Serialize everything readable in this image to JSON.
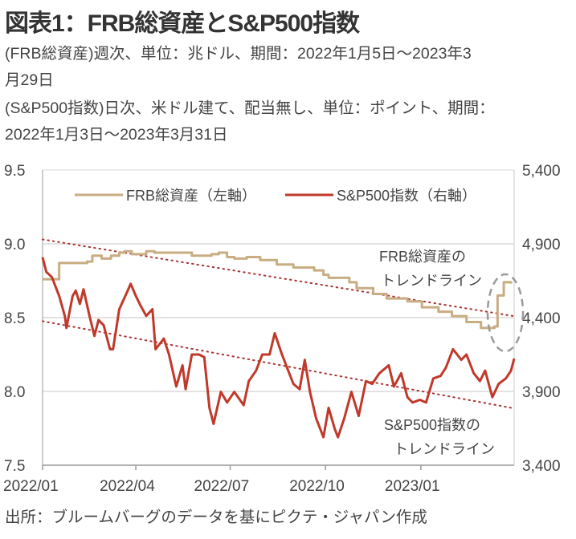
{
  "title": "図表1：FRB総資産とS&P500指数",
  "notes": [
    "(FRB総資産)週次、単位：兆ドル、期間：2022年1月5日～2023年3",
    "月29日",
    "(S&P500指数)日次、米ドル建て、配当無し、単位：ポイント、期間：",
    "2022年1月3日～2023年3月31日"
  ],
  "source": "出所：ブルームバーグのデータを基にピクテ・ジャパン作成",
  "chart_data": {
    "type": "line",
    "x_unit": "days since 2022-01-01",
    "xlim": [
      0,
      455
    ],
    "x_ticks": [
      {
        "day": 0,
        "label": "2022/01"
      },
      {
        "day": 90,
        "label": "2022/04"
      },
      {
        "day": 181,
        "label": "2022/07"
      },
      {
        "day": 273,
        "label": "2022/10"
      },
      {
        "day": 365,
        "label": "2023/01"
      }
    ],
    "y_left": {
      "lim": [
        7.5,
        9.5
      ],
      "ticks": [
        "9.5",
        "9.0",
        "8.5",
        "8.0",
        "7.5"
      ],
      "tick_values": [
        9.5,
        9.0,
        8.5,
        8.0,
        7.5
      ]
    },
    "y_right": {
      "lim": [
        3400,
        5400
      ],
      "ticks": [
        "5,400",
        "4,900",
        "4,400",
        "3,900",
        "3,400"
      ],
      "tick_values": [
        5400,
        4900,
        4400,
        3900,
        3400
      ]
    },
    "grid": true,
    "legend": {
      "placement": "top",
      "entries": [
        "FRB総資産（左軸）",
        "S&P500指数（右軸）"
      ]
    },
    "colors": {
      "frb": "#c8ad82",
      "sp": "#c0392b",
      "grid": "#d9d9d9",
      "trend": "#a33",
      "ellipse": "#9a9a9a"
    },
    "series": [
      {
        "name": "FRB総資産（左軸）",
        "axis": "left",
        "step": true,
        "points": [
          [
            0,
            8.76
          ],
          [
            16,
            8.87
          ],
          [
            43,
            8.88
          ],
          [
            48,
            8.92
          ],
          [
            57,
            8.9
          ],
          [
            66,
            8.92
          ],
          [
            74,
            8.94
          ],
          [
            79,
            8.95
          ],
          [
            86,
            8.93
          ],
          [
            100,
            8.95
          ],
          [
            108,
            8.94
          ],
          [
            135,
            8.94
          ],
          [
            144,
            8.92
          ],
          [
            163,
            8.93
          ],
          [
            170,
            8.94
          ],
          [
            178,
            8.91
          ],
          [
            185,
            8.9
          ],
          [
            197,
            8.91
          ],
          [
            210,
            8.89
          ],
          [
            226,
            8.86
          ],
          [
            242,
            8.84
          ],
          [
            262,
            8.82
          ],
          [
            271,
            8.79
          ],
          [
            276,
            8.77
          ],
          [
            296,
            8.74
          ],
          [
            303,
            8.7
          ],
          [
            319,
            8.66
          ],
          [
            332,
            8.63
          ],
          [
            352,
            8.61
          ],
          [
            366,
            8.57
          ],
          [
            382,
            8.54
          ],
          [
            395,
            8.51
          ],
          [
            409,
            8.47
          ],
          [
            423,
            8.43
          ],
          [
            436,
            8.44
          ],
          [
            439,
            8.65
          ],
          [
            445,
            8.74
          ],
          [
            452,
            8.73
          ]
        ]
      },
      {
        "name": "S&P500指数（右軸）",
        "axis": "right",
        "step": false,
        "points": [
          [
            0,
            4809
          ],
          [
            3.6,
            4710
          ],
          [
            9,
            4674
          ],
          [
            16,
            4547
          ],
          [
            21.5,
            4410
          ],
          [
            23,
            4330
          ],
          [
            29,
            4547
          ],
          [
            32,
            4583
          ],
          [
            36,
            4493
          ],
          [
            39.5,
            4592
          ],
          [
            45,
            4420
          ],
          [
            50,
            4276
          ],
          [
            54,
            4384
          ],
          [
            59,
            4348
          ],
          [
            65,
            4186
          ],
          [
            68,
            4186
          ],
          [
            74,
            4457
          ],
          [
            81,
            4565
          ],
          [
            85,
            4629
          ],
          [
            90,
            4547
          ],
          [
            95,
            4475
          ],
          [
            100,
            4412
          ],
          [
            106,
            4457
          ],
          [
            109,
            4186
          ],
          [
            117,
            4258
          ],
          [
            122,
            4150
          ],
          [
            129,
            3933
          ],
          [
            135,
            4077
          ],
          [
            138,
            3915
          ],
          [
            144,
            4150
          ],
          [
            151,
            4150
          ],
          [
            156,
            4132
          ],
          [
            161,
            3789
          ],
          [
            165,
            3680
          ],
          [
            172,
            3897
          ],
          [
            178,
            3825
          ],
          [
            185,
            3897
          ],
          [
            194,
            3807
          ],
          [
            199,
            3970
          ],
          [
            206,
            4041
          ],
          [
            212,
            4150
          ],
          [
            219,
            4150
          ],
          [
            224,
            4294
          ],
          [
            231,
            4150
          ],
          [
            237,
            4041
          ],
          [
            242,
            3951
          ],
          [
            248,
            3915
          ],
          [
            253,
            4114
          ],
          [
            258,
            3897
          ],
          [
            264,
            3716
          ],
          [
            271,
            3590
          ],
          [
            276,
            3789
          ],
          [
            282,
            3644
          ],
          [
            285,
            3590
          ],
          [
            291,
            3716
          ],
          [
            298,
            3897
          ],
          [
            305,
            3734
          ],
          [
            312,
            3970
          ],
          [
            318,
            3951
          ],
          [
            325,
            4023
          ],
          [
            334,
            4077
          ],
          [
            339,
            3933
          ],
          [
            346,
            4023
          ],
          [
            352,
            3861
          ],
          [
            357,
            3825
          ],
          [
            364,
            3843
          ],
          [
            370,
            3825
          ],
          [
            377,
            3988
          ],
          [
            384,
            4005
          ],
          [
            389,
            4059
          ],
          [
            396,
            4186
          ],
          [
            404,
            4114
          ],
          [
            409,
            4150
          ],
          [
            416,
            4023
          ],
          [
            422,
            3970
          ],
          [
            427,
            4041
          ],
          [
            434,
            3861
          ],
          [
            440,
            3951
          ],
          [
            447,
            3988
          ],
          [
            452,
            4041
          ],
          [
            455,
            4123
          ]
        ]
      }
    ],
    "trendlines": [
      {
        "name": "FRB総資産のトレンドライン",
        "axis": "left",
        "from": [
          0,
          9.03
        ],
        "to": [
          455,
          8.51
        ]
      },
      {
        "name": "S&P500指数のトレンドライン",
        "axis": "right",
        "from": [
          0,
          4376
        ],
        "to": [
          455,
          3785
        ]
      }
    ],
    "annotations": {
      "frb_trend": [
        "FRB総資産の",
        "トレンドライン"
      ],
      "sp_trend": [
        "S&P500指数の",
        "トレンドライン"
      ]
    }
  }
}
